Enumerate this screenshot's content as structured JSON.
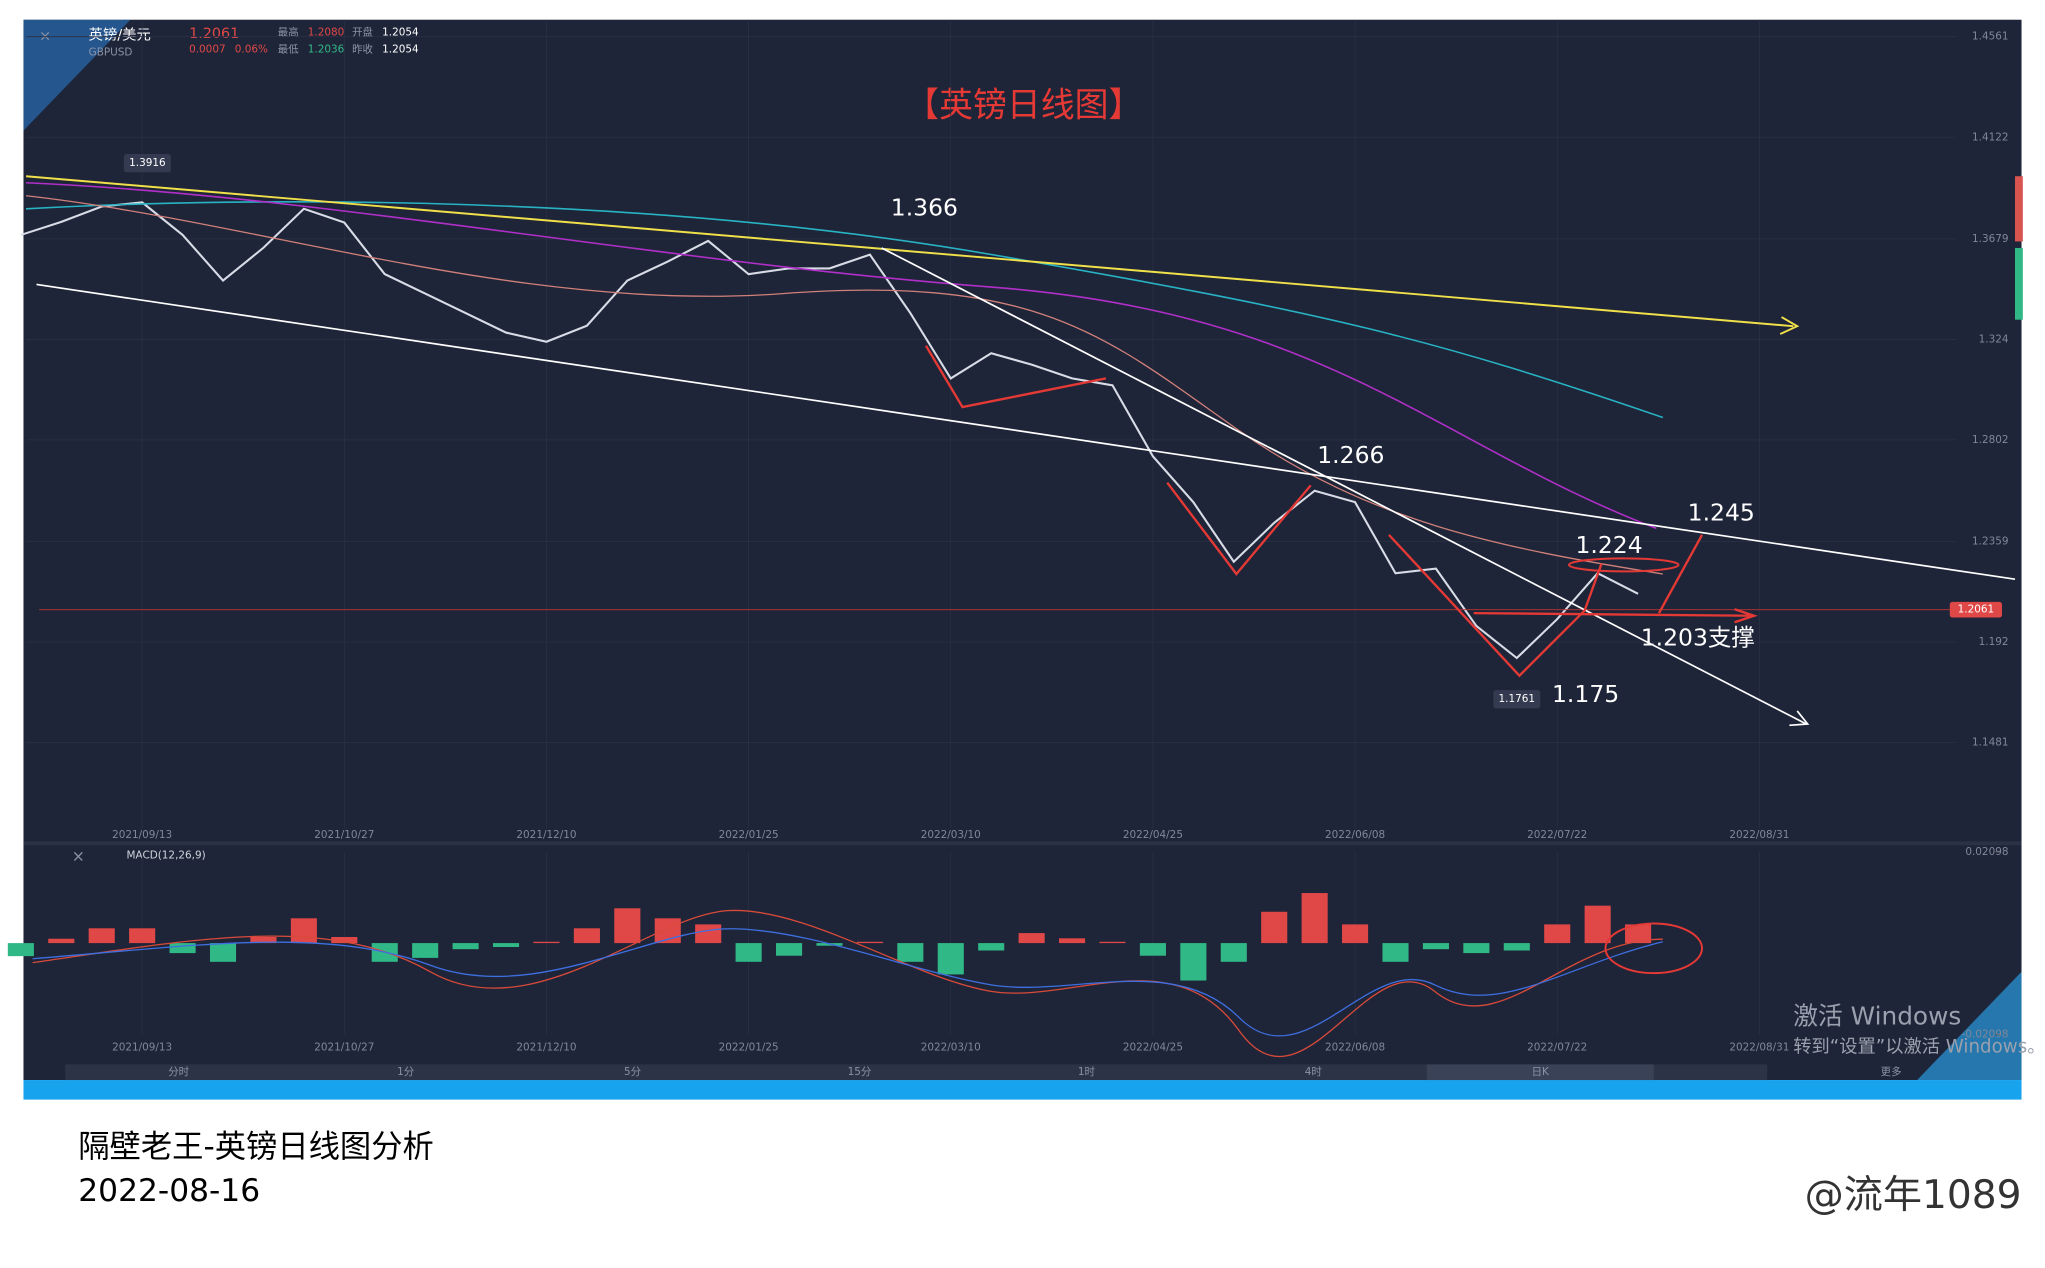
{
  "quote": {
    "name": "英镑/美元",
    "symbol": "GBPUSD",
    "price": "1.2061",
    "change": "0.0007",
    "change_pct": "0.06%",
    "high_label": "最高",
    "high": "1.2080",
    "open_label": "开盘",
    "open": "1.2054",
    "low_label": "最低",
    "low": "1.2036",
    "prev_label": "昨收",
    "prev": "1.2054"
  },
  "chart_data": [
    {
      "type": "line",
      "title": "【英镑日线图】",
      "categories": [
        null,
        null,
        null,
        "2021/09/13",
        null,
        null,
        null,
        null,
        "2021/10/27",
        null,
        null,
        null,
        null,
        "2021/12/10",
        null,
        null,
        null,
        null,
        "2022/01/25",
        null,
        null,
        null,
        null,
        "2022/03/10",
        null,
        null,
        null,
        null,
        "2022/04/25",
        null,
        null,
        null,
        null,
        "2022/06/08",
        null,
        null,
        null,
        null,
        "2022/07/22",
        null,
        null,
        null,
        null,
        "2022/08/31"
      ],
      "values": [
        1.3696,
        1.3753,
        1.382,
        1.3838,
        1.3696,
        1.3497,
        1.364,
        1.381,
        1.375,
        1.3525,
        1.344,
        1.3355,
        1.327,
        1.323,
        1.33,
        1.3497,
        1.358,
        1.367,
        1.3525,
        1.355,
        1.355,
        1.361,
        1.3355,
        1.307,
        1.318,
        1.313,
        1.307,
        1.304,
        1.273,
        1.253,
        1.227,
        1.244,
        1.258,
        1.253,
        1.222,
        1.224,
        1.199,
        1.185,
        1.202,
        1.222,
        1.213,
        null,
        null,
        null
      ],
      "color": "#d8dce6",
      "ylim": [
        1.1107,
        1.4635
      ],
      "yticks": [
        1.1481,
        1.192,
        1.2359,
        1.2802,
        1.324,
        1.3679,
        1.4122,
        1.4561
      ],
      "grid": true,
      "current_price": 1.2061,
      "annotations": [
        1.3916,
        1.366,
        1.266,
        1.224,
        1.245,
        "1.203支撑",
        1.175,
        1.1761
      ]
    },
    {
      "type": "bar",
      "title": "MACD(12,26,9)",
      "categories": [
        null,
        null,
        null,
        "2021/09/13",
        null,
        null,
        null,
        null,
        "2021/10/27",
        null,
        null,
        null,
        null,
        "2021/12/10",
        null,
        null,
        null,
        null,
        "2022/01/25",
        null,
        null,
        null,
        null,
        "2022/03/10",
        null,
        null,
        null,
        null,
        "2022/04/25",
        null,
        null,
        null,
        null,
        "2022/06/08",
        null,
        null,
        null,
        null,
        "2022/07/22",
        null,
        null,
        null,
        null,
        "2022/08/31"
      ],
      "values": [
        -0.003,
        0.001,
        0.0034,
        0.0034,
        -0.0023,
        -0.0043,
        0.0014,
        0.0057,
        0.0014,
        -0.0043,
        -0.0034,
        -0.0014,
        -0.0009,
        0.0003,
        0.0034,
        0.008,
        0.0057,
        0.0043,
        -0.0043,
        -0.0029,
        -0.0006,
        0.0003,
        -0.0043,
        -0.0072,
        -0.0017,
        0.0023,
        0.0011,
        0.0003,
        -0.0029,
        -0.0086,
        -0.0043,
        0.0072,
        0.0115,
        0.0043,
        -0.0043,
        -0.0014,
        -0.0023,
        -0.0017,
        0.0043,
        0.0086,
        0.0043,
        null,
        null,
        null
      ],
      "colors": {
        "up": "#e04848",
        "down": "#31b887"
      },
      "ylim": [
        -0.02098,
        0.02098
      ],
      "yticks": [
        -0.02098,
        0.02098
      ]
    }
  ],
  "timeframes": [
    "分时",
    "1分",
    "5分",
    "15分",
    "1时",
    "4时",
    "日K",
    "更多"
  ],
  "watermark": {
    "line1": "激活 Windows",
    "line2": "转到“设置”以激活 Windows。"
  },
  "caption": {
    "title": "隔壁老王-英镑日线图分析",
    "date": "2022-08-16",
    "author": "@流年1089"
  }
}
